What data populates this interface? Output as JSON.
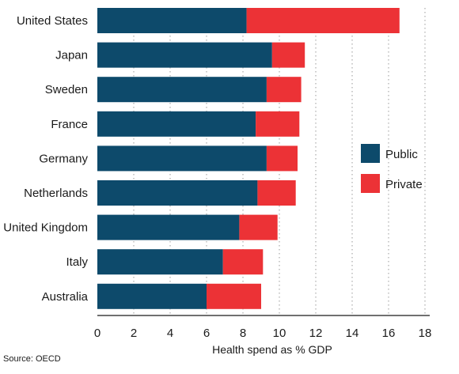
{
  "chart_data": {
    "type": "bar",
    "orientation": "horizontal",
    "stacked": true,
    "categories": [
      "United States",
      "Japan",
      "Sweden",
      "France",
      "Germany",
      "Netherlands",
      "United Kingdom",
      "Italy",
      "Australia"
    ],
    "series": [
      {
        "name": "Public",
        "color": "#0d4a6b",
        "values": [
          8.2,
          9.6,
          9.3,
          8.7,
          9.3,
          8.8,
          7.8,
          6.9,
          6.0
        ]
      },
      {
        "name": "Private",
        "color": "#ec3236",
        "values": [
          8.4,
          1.8,
          1.9,
          2.4,
          1.7,
          2.1,
          2.1,
          2.2,
          3.0
        ]
      }
    ],
    "xlabel": "Health spend as % GDP",
    "xlim": [
      0,
      18
    ],
    "xticks": [
      "0",
      "2",
      "4",
      "6",
      "8",
      "10",
      "12",
      "14",
      "16",
      "18"
    ],
    "grid": "vertical dotted",
    "legend_position": "right"
  },
  "source": "Source: OECD"
}
